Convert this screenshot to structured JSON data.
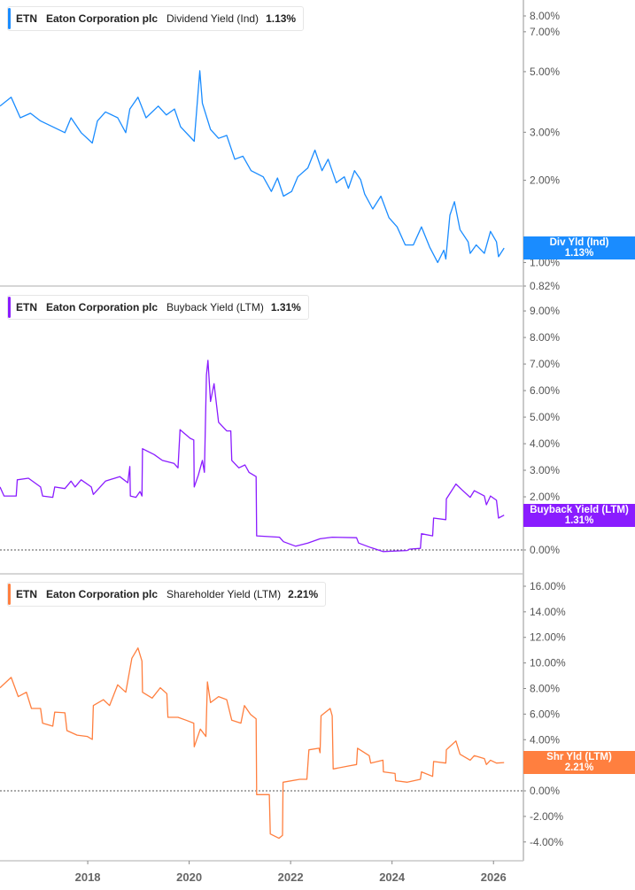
{
  "chart_data": [
    {
      "type": "line",
      "yscale": "log",
      "ylim": [
        0.82,
        9.15
      ],
      "xlim": [
        2016.27,
        2026.59
      ],
      "color": "#1a8cff",
      "legend": {
        "ticker": "ETN",
        "company": "Eaton Corporation plc",
        "metric": "Dividend Yield (Ind)",
        "value": "1.13%"
      },
      "badge": {
        "label": "Div Yld (Ind)",
        "value": "1.13%",
        "y": 1.13
      },
      "yticks": [
        {
          "v": 8,
          "label": "8.00%"
        },
        {
          "v": 7,
          "label": "7.00%"
        },
        {
          "v": 5,
          "label": "5.00%"
        },
        {
          "v": 3,
          "label": "3.00%"
        },
        {
          "v": 2,
          "label": "2.00%"
        },
        {
          "v": 1,
          "label": "1.00%"
        },
        {
          "v": 0.82,
          "label": "0.82%"
        }
      ],
      "zero_line": false,
      "series": {
        "x": [
          2016.27,
          2016.49,
          2016.67,
          2016.87,
          2017.07,
          2017.55,
          2017.67,
          2017.87,
          2018.09,
          2018.19,
          2018.35,
          2018.59,
          2018.75,
          2018.83,
          2018.99,
          2019.15,
          2019.39,
          2019.55,
          2019.71,
          2019.83,
          2020.1,
          2020.21,
          2020.26,
          2020.42,
          2020.58,
          2020.74,
          2020.9,
          2021.06,
          2021.22,
          2021.46,
          2021.62,
          2021.74,
          2021.86,
          2022.02,
          2022.14,
          2022.34,
          2022.48,
          2022.62,
          2022.74,
          2022.9,
          2023.06,
          2023.14,
          2023.26,
          2023.38,
          2023.46,
          2023.62,
          2023.78,
          2023.94,
          2024.1,
          2024.26,
          2024.42,
          2024.58,
          2024.74,
          2024.9,
          2025.02,
          2025.06,
          2025.14,
          2025.23,
          2025.34,
          2025.5,
          2025.54,
          2025.66,
          2025.82,
          2025.94,
          2026.06,
          2026.1,
          2026.21
        ],
        "y": [
          3.74,
          4.03,
          3.39,
          3.52,
          3.3,
          2.99,
          3.39,
          2.99,
          2.74,
          3.3,
          3.56,
          3.39,
          2.99,
          3.65,
          4.03,
          3.39,
          3.74,
          3.47,
          3.65,
          3.14,
          2.78,
          5.04,
          3.83,
          3.07,
          2.85,
          2.92,
          2.39,
          2.45,
          2.17,
          2.06,
          1.82,
          2.04,
          1.75,
          1.82,
          2.06,
          2.22,
          2.58,
          2.17,
          2.39,
          1.96,
          2.06,
          1.87,
          2.17,
          2.01,
          1.78,
          1.57,
          1.75,
          1.46,
          1.35,
          1.16,
          1.16,
          1.35,
          1.14,
          1.0,
          1.11,
          1.03,
          1.49,
          1.67,
          1.32,
          1.19,
          1.08,
          1.16,
          1.08,
          1.3,
          1.19,
          1.05,
          1.13
        ]
      }
    },
    {
      "type": "line",
      "yscale": "linear",
      "ylim": [
        -0.9,
        9.87
      ],
      "xlim": [
        2016.27,
        2026.59
      ],
      "color": "#8a1cff",
      "legend": {
        "ticker": "ETN",
        "company": "Eaton Corporation plc",
        "metric": "Buyback Yield (LTM)",
        "value": "1.31%"
      },
      "badge": {
        "label": "Buyback Yield (LTM)",
        "value": "1.31%",
        "y": 1.31
      },
      "yticks": [
        {
          "v": 9,
          "label": "9.00%"
        },
        {
          "v": 8,
          "label": "8.00%"
        },
        {
          "v": 7,
          "label": "7.00%"
        },
        {
          "v": 6,
          "label": "6.00%"
        },
        {
          "v": 5,
          "label": "5.00%"
        },
        {
          "v": 4,
          "label": "4.00%"
        },
        {
          "v": 3,
          "label": "3.00%"
        },
        {
          "v": 2,
          "label": "2.00%"
        },
        {
          "v": 1,
          "label": "1.00%"
        },
        {
          "v": 0,
          "label": "0.00%"
        }
      ],
      "zero_line": true,
      "series": {
        "x": [
          2016.27,
          2016.35,
          2016.59,
          2016.61,
          2016.83,
          2017.07,
          2017.11,
          2017.31,
          2017.35,
          2017.55,
          2017.67,
          2017.75,
          2017.87,
          2018.07,
          2018.11,
          2018.35,
          2018.63,
          2018.79,
          2018.83,
          2018.84,
          2018.95,
          2019.03,
          2019.07,
          2019.08,
          2019.31,
          2019.47,
          2019.7,
          2019.78,
          2019.82,
          2020.02,
          2020.09,
          2020.1,
          2020.18,
          2020.26,
          2020.3,
          2020.34,
          2020.37,
          2020.42,
          2020.49,
          2020.58,
          2020.74,
          2020.82,
          2020.84,
          2020.98,
          2021.1,
          2021.18,
          2021.32,
          2021.33,
          2021.78,
          2021.86,
          2022.1,
          2022.34,
          2022.58,
          2022.82,
          2023.3,
          2023.34,
          2023.58,
          2023.82,
          2024.3,
          2024.34,
          2024.56,
          2024.58,
          2024.8,
          2024.82,
          2025.06,
          2025.07,
          2025.26,
          2025.38,
          2025.54,
          2025.62,
          2025.82,
          2025.86,
          2025.94,
          2026.06,
          2026.1,
          2026.21
        ],
        "y": [
          2.37,
          2.03,
          2.03,
          2.64,
          2.7,
          2.37,
          2.03,
          1.98,
          2.37,
          2.31,
          2.59,
          2.37,
          2.64,
          2.37,
          2.09,
          2.59,
          2.76,
          2.53,
          3.14,
          2.03,
          1.98,
          2.2,
          2.03,
          3.81,
          3.59,
          3.37,
          3.26,
          3.09,
          4.53,
          4.2,
          4.14,
          2.37,
          2.81,
          3.37,
          2.92,
          6.59,
          7.14,
          5.59,
          6.26,
          4.81,
          4.48,
          4.48,
          3.37,
          3.09,
          3.2,
          2.92,
          2.76,
          0.53,
          0.48,
          0.31,
          0.14,
          0.26,
          0.42,
          0.48,
          0.46,
          0.26,
          0.09,
          -0.06,
          -0.02,
          0.03,
          0.06,
          0.61,
          0.53,
          1.2,
          1.14,
          1.92,
          2.48,
          2.26,
          1.98,
          2.23,
          2.03,
          1.7,
          2.03,
          1.87,
          1.2,
          1.31
        ]
      }
    },
    {
      "type": "line",
      "yscale": "linear",
      "ylim": [
        -5.47,
        16.83
      ],
      "xlim": [
        2016.27,
        2026.59
      ],
      "color": "#ff7f3f",
      "legend": {
        "ticker": "ETN",
        "company": "Eaton Corporation plc",
        "metric": "Shareholder Yield (LTM)",
        "value": "2.21%"
      },
      "badge": {
        "label": "Shr Yld (LTM)",
        "value": "2.21%",
        "y": 2.21
      },
      "yticks": [
        {
          "v": 16,
          "label": "16.00%"
        },
        {
          "v": 14,
          "label": "14.00%"
        },
        {
          "v": 12,
          "label": "12.00%"
        },
        {
          "v": 10,
          "label": "10.00%"
        },
        {
          "v": 8,
          "label": "8.00%"
        },
        {
          "v": 6,
          "label": "6.00%"
        },
        {
          "v": 4,
          "label": "4.00%"
        },
        {
          "v": 2,
          "label": "2.00%"
        },
        {
          "v": 0,
          "label": "0.00%"
        },
        {
          "v": -2,
          "label": "-2.00%"
        },
        {
          "v": -4,
          "label": "-4.00%"
        }
      ],
      "zero_line": true,
      "xticks": [
        {
          "v": 2018,
          "label": "2018"
        },
        {
          "v": 2020,
          "label": "2020"
        },
        {
          "v": 2022,
          "label": "2022"
        },
        {
          "v": 2024,
          "label": "2024"
        },
        {
          "v": 2026,
          "label": "2026"
        }
      ],
      "series": {
        "x": [
          2016.27,
          2016.49,
          2016.63,
          2016.79,
          2016.89,
          2017.07,
          2017.11,
          2017.31,
          2017.35,
          2017.55,
          2017.59,
          2017.79,
          2017.99,
          2018.09,
          2018.11,
          2018.31,
          2018.43,
          2018.59,
          2018.75,
          2018.87,
          2018.99,
          2019.07,
          2019.08,
          2019.27,
          2019.43,
          2019.56,
          2019.58,
          2019.78,
          2019.94,
          2020.09,
          2020.1,
          2020.22,
          2020.33,
          2020.36,
          2020.42,
          2020.58,
          2020.74,
          2020.84,
          2021.02,
          2021.09,
          2021.21,
          2021.32,
          2021.33,
          2021.58,
          2021.6,
          2021.77,
          2021.84,
          2021.85,
          2022.18,
          2022.32,
          2022.36,
          2022.56,
          2022.58,
          2022.6,
          2022.78,
          2022.82,
          2022.84,
          2023.14,
          2023.3,
          2023.32,
          2023.55,
          2023.58,
          2023.82,
          2023.83,
          2024.06,
          2024.07,
          2024.3,
          2024.56,
          2024.58,
          2024.8,
          2024.82,
          2025.06,
          2025.07,
          2025.26,
          2025.34,
          2025.54,
          2025.62,
          2025.82,
          2025.86,
          2025.94,
          2026.06,
          2026.21
        ],
        "y": [
          8.06,
          8.87,
          7.37,
          7.71,
          6.44,
          6.44,
          5.29,
          5.06,
          6.16,
          6.1,
          4.71,
          4.36,
          4.25,
          4.02,
          6.67,
          7.13,
          6.67,
          8.29,
          7.71,
          10.37,
          11.17,
          10.14,
          7.71,
          7.25,
          8.06,
          7.6,
          5.75,
          5.75,
          5.52,
          5.29,
          3.44,
          4.83,
          4.25,
          8.52,
          6.9,
          7.37,
          7.13,
          5.52,
          5.29,
          6.67,
          5.98,
          5.63,
          -0.3,
          -0.3,
          -3.37,
          -3.71,
          -3.48,
          0.67,
          0.9,
          0.9,
          3.21,
          3.33,
          2.98,
          5.87,
          6.44,
          5.87,
          1.71,
          1.94,
          2.06,
          3.33,
          2.75,
          2.17,
          2.4,
          1.48,
          1.36,
          0.79,
          0.67,
          0.9,
          1.48,
          1.13,
          2.29,
          2.17,
          3.21,
          3.9,
          2.86,
          2.4,
          2.75,
          2.52,
          2.06,
          2.4,
          2.17,
          2.21
        ]
      }
    }
  ]
}
